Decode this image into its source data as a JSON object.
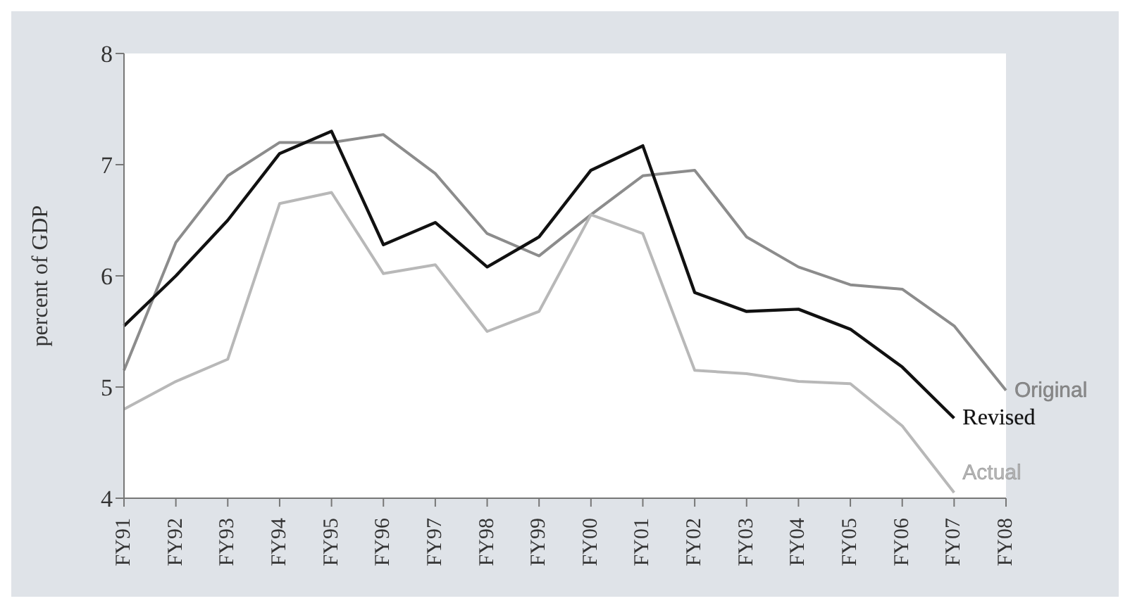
{
  "chart_data": {
    "type": "line",
    "ylabel": "percent of GDP",
    "categories": [
      "FY91",
      "FY92",
      "FY93",
      "FY94",
      "FY95",
      "FY96",
      "FY97",
      "FY98",
      "FY99",
      "FY00",
      "FY01",
      "FY02",
      "FY03",
      "FY04",
      "FY05",
      "FY06",
      "FY07",
      "FY08"
    ],
    "series": [
      {
        "name": "Original",
        "color": "#8c8c8c",
        "values": [
          5.15,
          6.3,
          6.9,
          7.2,
          7.2,
          7.27,
          6.92,
          6.38,
          6.18,
          6.55,
          6.9,
          6.95,
          6.35,
          6.08,
          5.92,
          5.88,
          5.55,
          4.97
        ]
      },
      {
        "name": "Revised",
        "color": "#111111",
        "values": [
          5.55,
          6.0,
          6.5,
          7.1,
          7.3,
          6.28,
          6.48,
          6.08,
          6.35,
          6.95,
          7.17,
          5.85,
          5.68,
          5.7,
          5.52,
          5.18,
          4.72,
          null
        ]
      },
      {
        "name": "Actual",
        "color": "#b8b8b8",
        "values": [
          4.8,
          5.05,
          5.25,
          6.65,
          6.75,
          6.02,
          6.1,
          5.5,
          5.68,
          6.55,
          6.38,
          5.15,
          5.12,
          5.05,
          5.03,
          4.65,
          4.05,
          null
        ]
      }
    ],
    "ylim": [
      4,
      8
    ],
    "yticks": [
      4,
      5,
      6,
      7,
      8
    ],
    "grid": false,
    "legend": false,
    "marker": "none",
    "line_style": "solid"
  }
}
